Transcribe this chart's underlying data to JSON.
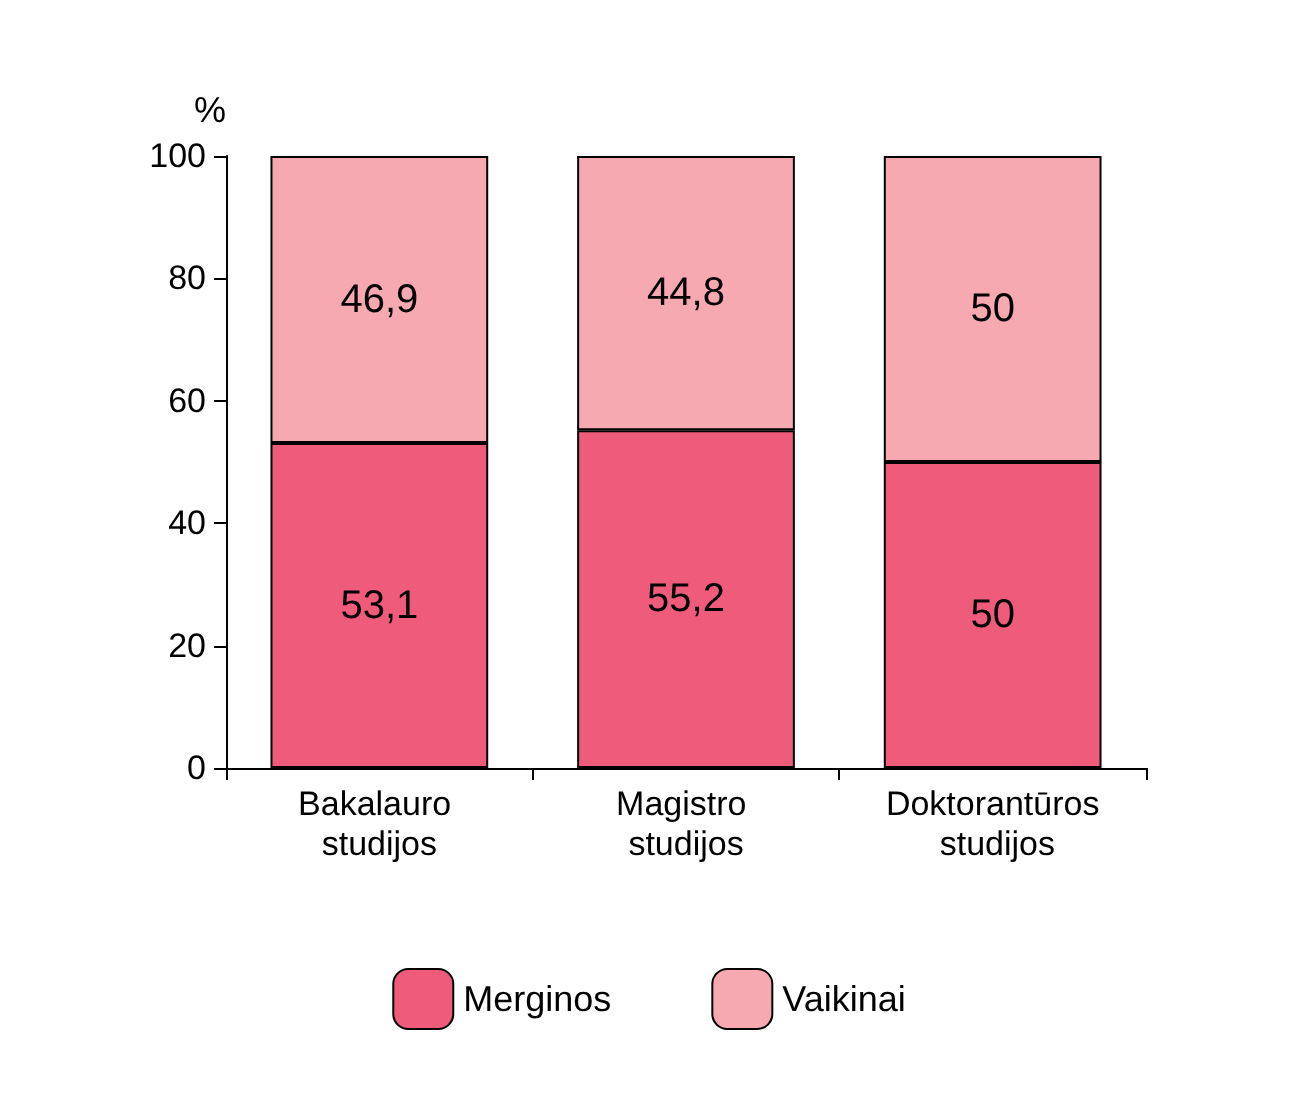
{
  "chart_data": {
    "type": "bar",
    "stacked": true,
    "ylabel": "%",
    "categories": [
      "Bakalauro studijos",
      "Magistro studijos",
      "Doktorantūros studijos"
    ],
    "series": [
      {
        "name": "Merginos",
        "color": "#ef5b7a",
        "values": [
          53.1,
          55.2,
          50
        ],
        "value_labels": [
          "53,1",
          "55,2",
          "50"
        ]
      },
      {
        "name": "Vaikinai",
        "color": "#f6a9b0",
        "values": [
          46.9,
          44.8,
          50
        ],
        "value_labels": [
          "46,9",
          "44,8",
          "50"
        ]
      }
    ],
    "ylim": [
      0,
      100
    ],
    "yticks": [
      0,
      20,
      40,
      60,
      80,
      100
    ],
    "grid": false,
    "legend": "bottom"
  }
}
